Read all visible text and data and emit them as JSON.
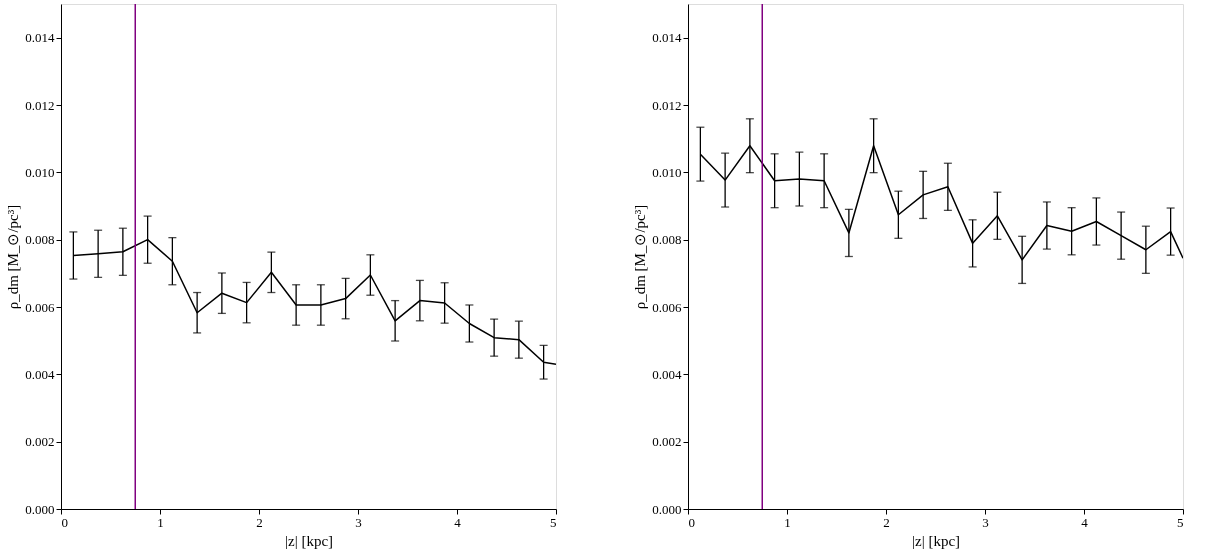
{
  "chart_data": [
    {
      "type": "line",
      "xlabel": "|z| [kpc]",
      "ylabel": "ρ_dm [M_⊙/pc³]",
      "x": [
        0.125,
        0.375,
        0.625,
        0.875,
        1.125,
        1.375,
        1.625,
        1.875,
        2.125,
        2.375,
        2.625,
        2.875,
        3.125,
        3.375,
        3.625,
        3.875,
        4.125,
        4.375,
        4.625,
        4.875,
        5.0
      ],
      "series": [
        {
          "color": "#000000",
          "values": [
            0.00753,
            0.00758,
            0.00764,
            0.008,
            0.00736,
            0.00583,
            0.00641,
            0.00613,
            0.00703,
            0.00606,
            0.00606,
            0.00625,
            0.00695,
            0.00559,
            0.00619,
            0.00612,
            0.00551,
            0.00509,
            0.00503,
            0.00436,
            0.0043
          ],
          "errors": [
            0.0007,
            0.0007,
            0.0007,
            0.0007,
            0.0007,
            0.0006,
            0.0006,
            0.0006,
            0.0006,
            0.0006,
            0.0006,
            0.0006,
            0.0006,
            0.0006,
            0.0006,
            0.0006,
            0.00055,
            0.00055,
            0.00055,
            0.0005,
            null
          ]
        }
      ],
      "xlim": [
        0,
        5
      ],
      "xticks": [
        0,
        1,
        2,
        3,
        4,
        5
      ],
      "ylim": [
        0,
        0.015
      ],
      "yticks": [
        {
          "value": 0,
          "label": "0.000"
        },
        {
          "value": 0.002,
          "label": "0.002"
        },
        {
          "value": 0.004,
          "label": "0.004"
        },
        {
          "value": 0.006,
          "label": "0.006"
        },
        {
          "value": 0.008,
          "label": "0.008"
        },
        {
          "value": 0.01,
          "label": "0.010"
        },
        {
          "value": 0.012,
          "label": "0.012"
        },
        {
          "value": 0.014,
          "label": "0.014"
        }
      ],
      "ref_lines": [
        {
          "axis": "x",
          "value": 0.75,
          "color": "#800080"
        }
      ],
      "grid": false,
      "marker": "none",
      "line_style": "solid"
    },
    {
      "type": "line",
      "xlabel": "|z| [kpc]",
      "ylabel": "ρ_dm [M_⊙/pc³]",
      "x": [
        0.125,
        0.375,
        0.625,
        0.875,
        1.125,
        1.375,
        1.625,
        1.875,
        2.125,
        2.375,
        2.625,
        2.875,
        3.125,
        3.375,
        3.625,
        3.875,
        4.125,
        4.375,
        4.625,
        4.875,
        5.0
      ],
      "series": [
        {
          "color": "#000000",
          "values": [
            0.01054,
            0.00977,
            0.01079,
            0.00975,
            0.0098,
            0.00975,
            0.0082,
            0.01079,
            0.00874,
            0.00933,
            0.00957,
            0.00789,
            0.00871,
            0.0074,
            0.00842,
            0.00825,
            0.00854,
            0.00812,
            0.0077,
            0.00824,
            0.00745
          ],
          "errors": [
            0.0008,
            0.0008,
            0.0008,
            0.0008,
            0.0008,
            0.0008,
            0.0007,
            0.0008,
            0.0007,
            0.0007,
            0.0007,
            0.0007,
            0.0007,
            0.0007,
            0.0007,
            0.0007,
            0.0007,
            0.0007,
            0.0007,
            0.0007,
            null
          ]
        }
      ],
      "xlim": [
        0,
        5
      ],
      "xticks": [
        0,
        1,
        2,
        3,
        4,
        5
      ],
      "ylim": [
        0,
        0.015
      ],
      "yticks": [
        {
          "value": 0,
          "label": "0.000"
        },
        {
          "value": 0.002,
          "label": "0.002"
        },
        {
          "value": 0.004,
          "label": "0.004"
        },
        {
          "value": 0.006,
          "label": "0.006"
        },
        {
          "value": 0.008,
          "label": "0.008"
        },
        {
          "value": 0.01,
          "label": "0.010"
        },
        {
          "value": 0.012,
          "label": "0.012"
        },
        {
          "value": 0.014,
          "label": "0.014"
        }
      ],
      "ref_lines": [
        {
          "axis": "x",
          "value": 0.75,
          "color": "#800080"
        }
      ],
      "grid": false,
      "marker": "none",
      "line_style": "solid"
    }
  ]
}
